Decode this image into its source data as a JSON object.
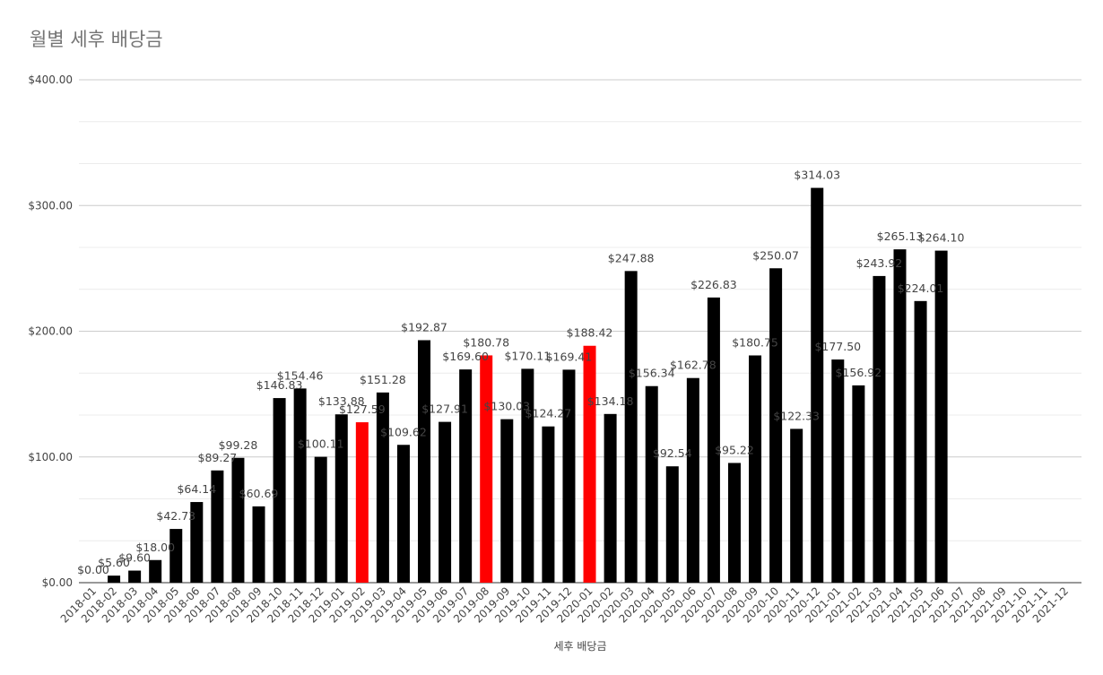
{
  "chart_data": {
    "type": "bar",
    "title": "월별 세후 배당금",
    "xlabel": "세후 배당금",
    "ylabel": "",
    "ylim": [
      0,
      400
    ],
    "y_ticks": [
      "$0.00",
      "$100.00",
      "$200.00",
      "$300.00",
      "$400.00"
    ],
    "grid": true,
    "legend": "none",
    "colors": {
      "default": "#000000",
      "highlight": "#ff0000"
    },
    "categories": [
      "2018-01",
      "2018-02",
      "2018-03",
      "2018-04",
      "2018-05",
      "2018-06",
      "2018-07",
      "2018-08",
      "2018-09",
      "2018-10",
      "2018-11",
      "2018-12",
      "2019-01",
      "2019-02",
      "2019-03",
      "2019-04",
      "2019-05",
      "2019-06",
      "2019-07",
      "2019-08",
      "2019-09",
      "2019-10",
      "2019-11",
      "2019-12",
      "2020-01",
      "2020-02",
      "2020-03",
      "2020-04",
      "2020-05",
      "2020-06",
      "2020-07",
      "2020-08",
      "2020-09",
      "2020-10",
      "2020-11",
      "2020-12",
      "2021-01",
      "2021-02",
      "2021-03",
      "2021-04",
      "2021-05",
      "2021-06",
      "2021-07",
      "2021-08",
      "2021-09",
      "2021-10",
      "2021-11",
      "2021-12"
    ],
    "values": [
      0,
      5.6,
      9.6,
      18.0,
      42.73,
      64.14,
      89.27,
      99.28,
      60.69,
      146.83,
      154.46,
      100.11,
      133.88,
      127.59,
      151.28,
      109.62,
      192.87,
      127.91,
      169.6,
      180.78,
      130.03,
      170.11,
      124.27,
      169.41,
      188.42,
      134.18,
      247.88,
      156.34,
      92.54,
      162.78,
      226.83,
      95.22,
      180.75,
      250.07,
      122.33,
      314.03,
      177.5,
      156.92,
      243.92,
      265.13,
      224.01,
      264.1,
      null,
      null,
      null,
      null,
      null,
      null
    ],
    "data_labels": [
      "$0.00",
      "$5.60",
      "$9.60",
      "$18.00",
      "$42.73",
      "$64.14",
      "$89.27",
      "$99.28",
      "$60.69",
      "$146.83",
      "$154.46",
      "$100.11",
      "$133.88",
      "$127.59",
      "$151.28",
      "$109.62",
      "$192.87",
      "$127.91",
      "$169.60",
      "$180.78",
      "$130.03",
      "$170.11",
      "$124.27",
      "$169.41",
      "$188.42",
      "$134.18",
      "$247.88",
      "$156.34",
      "$92.54",
      "$162.78",
      "$226.83",
      "$95.22",
      "$180.75",
      "$250.07",
      "$122.33",
      "$314.03",
      "$177.50",
      "$156.92",
      "$243.92",
      "$265.13",
      "$224.01",
      "$264.10",
      "",
      "",
      "",
      "",
      "",
      ""
    ],
    "highlighted": [
      "2018-01",
      "2019-02",
      "2019-08",
      "2020-01"
    ]
  }
}
